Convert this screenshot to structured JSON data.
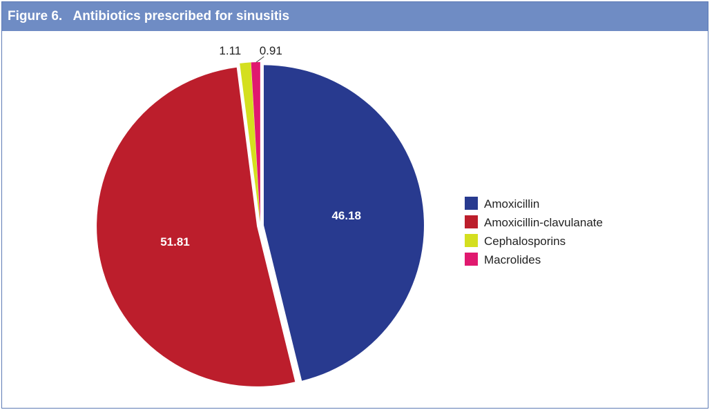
{
  "header": {
    "figure_label": "Figure 6.",
    "title": "Antibiotics prescribed for sinusitis"
  },
  "colors": {
    "header_bg": "#6f8cc4",
    "frame_border": "#5b79b4"
  },
  "chart_data": {
    "type": "pie",
    "title": "Antibiotics prescribed for sinusitis",
    "legend_position": "right",
    "slices": [
      {
        "label": "Amoxicillin",
        "value": 46.18,
        "value_label": "46.18",
        "color": "#283a8f",
        "label_placement": "inside"
      },
      {
        "label": "Amoxicillin-clavulanate",
        "value": 51.81,
        "value_label": "51.81",
        "color": "#bc1e2c",
        "label_placement": "inside"
      },
      {
        "label": "Cephalosporins",
        "value": 1.11,
        "value_label": "1.11",
        "color": "#d4df1f",
        "label_placement": "outside"
      },
      {
        "label": "Macrolides",
        "value": 0.91,
        "value_label": "0.91",
        "color": "#e0196f",
        "label_placement": "outside"
      }
    ]
  }
}
